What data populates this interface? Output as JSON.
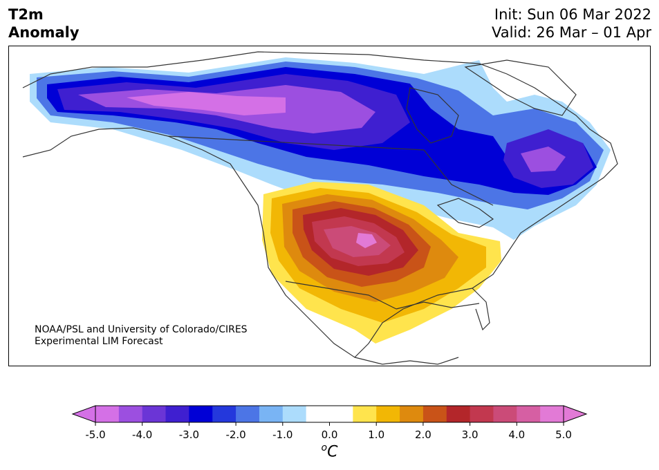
{
  "header": {
    "title_line1": "T2m",
    "title_line2": "Anomaly",
    "init": "Init: Sun 06 Mar 2022",
    "valid": "Valid: 26 Mar – 01 Apr"
  },
  "credit": {
    "line1": "NOAA/PSL and University of Colorado/CIRES",
    "line2": "Experimental LIM Forecast"
  },
  "colorbar": {
    "unit_label": "C",
    "unit_sup": "o",
    "ticks": [
      "-5.0",
      "-4.0",
      "-3.0",
      "-2.0",
      "-1.0",
      "0.0",
      "1.0",
      "2.0",
      "3.0",
      "4.0",
      "5.0"
    ],
    "colors": [
      "#d470e6",
      "#9c4fe0",
      "#6b35d6",
      "#3f1fd0",
      "#0000d6",
      "#2438dc",
      "#4c75e6",
      "#79b4f4",
      "#acdcfc",
      "#ffffff",
      "#ffffff",
      "#ffe44d",
      "#f2b705",
      "#de8a0e",
      "#c95318",
      "#b3262a",
      "#c2384f",
      "#cb4b78",
      "#d65fa3",
      "#e27ad6"
    ],
    "extend_low": "#d470e6",
    "extend_high": "#e27ad6"
  },
  "map": {
    "region": "North America",
    "variable": "2 m temperature anomaly",
    "anomaly_colors": {
      "strong_cold": "#d470e6",
      "cold": "#6b35d6",
      "cool": "#0000d6",
      "mild_cool": "#79b4f4",
      "mild_warm": "#ffe44d",
      "warm": "#de8a0e",
      "hot": "#b3262a",
      "very_hot": "#cb4b78"
    }
  }
}
